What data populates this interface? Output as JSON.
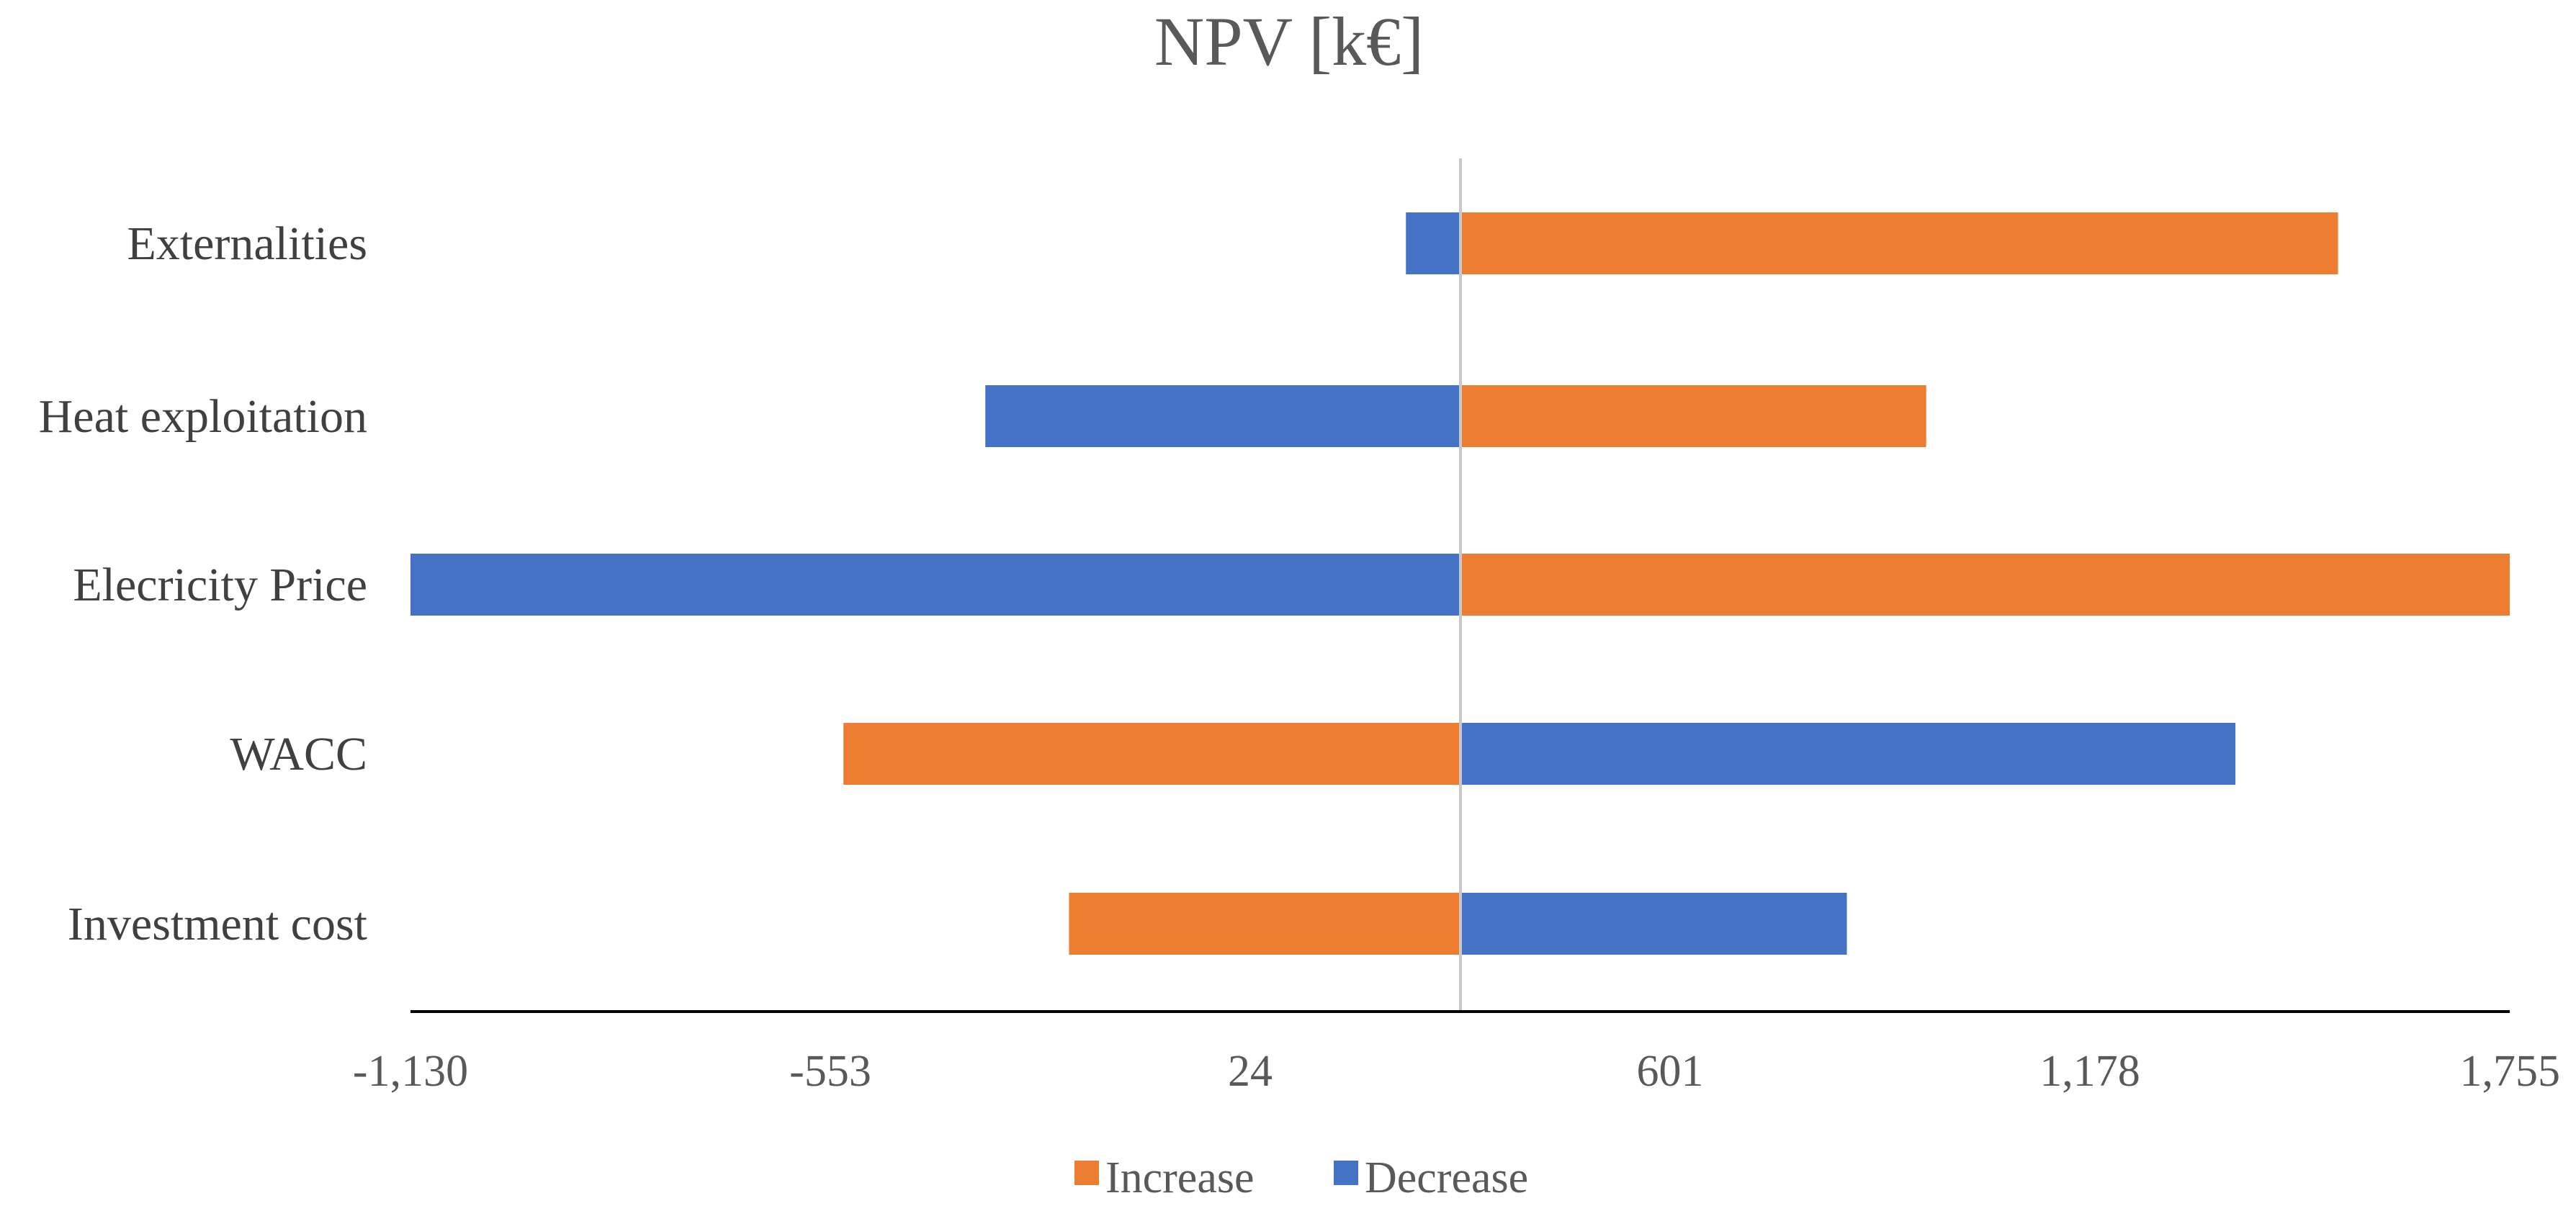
{
  "chart_data": {
    "type": "bar",
    "orientation": "horizontal",
    "subtype": "tornado",
    "title": "NPV [k€]",
    "xlabel": "",
    "ylabel": "",
    "base_value": 313,
    "xlim": [
      -1130,
      1755
    ],
    "x_ticks": [
      -1130,
      -553,
      24,
      601,
      1178,
      1755
    ],
    "x_tick_labels": [
      "-1,130",
      "-553",
      "24",
      "601",
      "1,178",
      "1,755"
    ],
    "categories": [
      "Externalities",
      "Heat exploitation",
      "Elecricity Price",
      "WACC",
      "Investment cost"
    ],
    "bars": [
      {
        "category": "Externalities",
        "decrease": 238,
        "increase": 1519
      },
      {
        "category": "Heat exploitation",
        "decrease": -340,
        "increase": 953
      },
      {
        "category": "Elecricity Price",
        "decrease": -1130,
        "increase": 1755
      },
      {
        "category": "WACC",
        "increase": -535,
        "decrease": 1378
      },
      {
        "category": "Investment cost",
        "increase": -225,
        "decrease": 844
      }
    ],
    "series": [
      {
        "name": "Increase",
        "color": "#ED7D31"
      },
      {
        "name": "Decrease",
        "color": "#4472C4"
      }
    ],
    "legend_position": "bottom",
    "grid": false
  }
}
